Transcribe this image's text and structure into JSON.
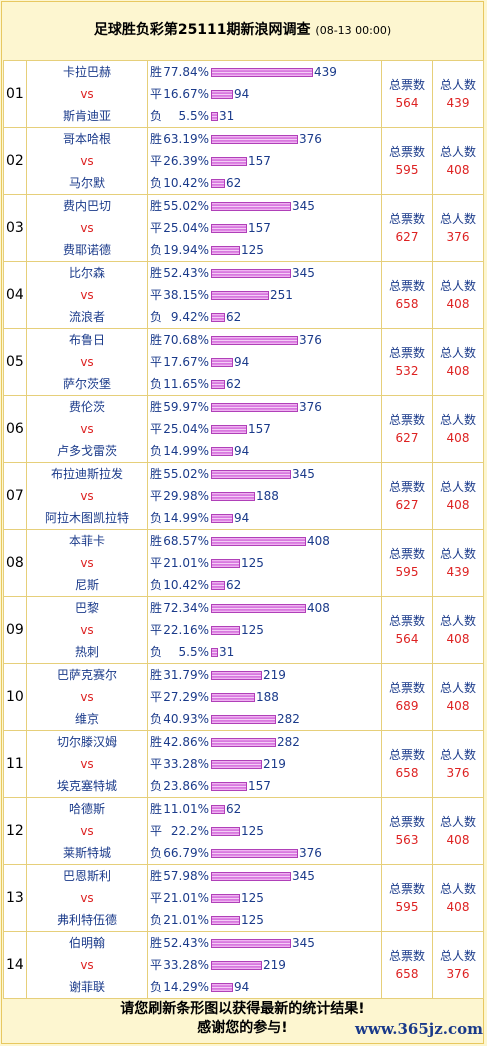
{
  "title": "足球胜负彩第25111期新浪网调查",
  "date": "(08-13 00:00)",
  "labels": {
    "win": "胜",
    "draw": "平",
    "loss": "负",
    "vs": "vs",
    "total_votes": "总票数",
    "total_people": "总人数"
  },
  "matches": [
    {
      "no": "01",
      "home": "卡拉巴赫",
      "away": "斯肯迪亚",
      "win": {
        "pct": "77.84%",
        "count": 439
      },
      "draw": {
        "pct": "16.67%",
        "count": 94
      },
      "loss": {
        "pct": "5.5%",
        "count": 31
      },
      "votes": "564",
      "people": "439"
    },
    {
      "no": "02",
      "home": "哥本哈根",
      "away": "马尔默",
      "win": {
        "pct": "63.19%",
        "count": 376
      },
      "draw": {
        "pct": "26.39%",
        "count": 157
      },
      "loss": {
        "pct": "10.42%",
        "count": 62
      },
      "votes": "595",
      "people": "408"
    },
    {
      "no": "03",
      "home": "费内巴切",
      "away": "费耶诺德",
      "win": {
        "pct": "55.02%",
        "count": 345
      },
      "draw": {
        "pct": "25.04%",
        "count": 157
      },
      "loss": {
        "pct": "19.94%",
        "count": 125
      },
      "votes": "627",
      "people": "376"
    },
    {
      "no": "04",
      "home": "比尔森",
      "away": "流浪者",
      "win": {
        "pct": "52.43%",
        "count": 345
      },
      "draw": {
        "pct": "38.15%",
        "count": 251
      },
      "loss": {
        "pct": "9.42%",
        "count": 62
      },
      "votes": "658",
      "people": "408"
    },
    {
      "no": "05",
      "home": "布鲁日",
      "away": "萨尔茨堡",
      "win": {
        "pct": "70.68%",
        "count": 376
      },
      "draw": {
        "pct": "17.67%",
        "count": 94
      },
      "loss": {
        "pct": "11.65%",
        "count": 62
      },
      "votes": "532",
      "people": "408"
    },
    {
      "no": "06",
      "home": "费伦茨",
      "away": "卢多戈雷茨",
      "win": {
        "pct": "59.97%",
        "count": 376
      },
      "draw": {
        "pct": "25.04%",
        "count": 157
      },
      "loss": {
        "pct": "14.99%",
        "count": 94
      },
      "votes": "627",
      "people": "408"
    },
    {
      "no": "07",
      "home": "布拉迪斯拉发",
      "away": "阿拉木图凯拉特",
      "win": {
        "pct": "55.02%",
        "count": 345
      },
      "draw": {
        "pct": "29.98%",
        "count": 188
      },
      "loss": {
        "pct": "14.99%",
        "count": 94
      },
      "votes": "627",
      "people": "408"
    },
    {
      "no": "08",
      "home": "本菲卡",
      "away": "尼斯",
      "win": {
        "pct": "68.57%",
        "count": 408
      },
      "draw": {
        "pct": "21.01%",
        "count": 125
      },
      "loss": {
        "pct": "10.42%",
        "count": 62
      },
      "votes": "595",
      "people": "439"
    },
    {
      "no": "09",
      "home": "巴黎",
      "away": "热刺",
      "win": {
        "pct": "72.34%",
        "count": 408
      },
      "draw": {
        "pct": "22.16%",
        "count": 125
      },
      "loss": {
        "pct": "5.5%",
        "count": 31
      },
      "votes": "564",
      "people": "408"
    },
    {
      "no": "10",
      "home": "巴萨克赛尔",
      "away": "维京",
      "win": {
        "pct": "31.79%",
        "count": 219
      },
      "draw": {
        "pct": "27.29%",
        "count": 188
      },
      "loss": {
        "pct": "40.93%",
        "count": 282
      },
      "votes": "689",
      "people": "408"
    },
    {
      "no": "11",
      "home": "切尔滕汉姆",
      "away": "埃克塞特城",
      "win": {
        "pct": "42.86%",
        "count": 282
      },
      "draw": {
        "pct": "33.28%",
        "count": 219
      },
      "loss": {
        "pct": "23.86%",
        "count": 157
      },
      "votes": "658",
      "people": "376"
    },
    {
      "no": "12",
      "home": "哈德斯",
      "away": "莱斯特城",
      "win": {
        "pct": "11.01%",
        "count": 62
      },
      "draw": {
        "pct": "22.2%",
        "count": 125
      },
      "loss": {
        "pct": "66.79%",
        "count": 376
      },
      "votes": "563",
      "people": "408"
    },
    {
      "no": "13",
      "home": "巴恩斯利",
      "away": "弗利特伍德",
      "win": {
        "pct": "57.98%",
        "count": 345
      },
      "draw": {
        "pct": "21.01%",
        "count": 125
      },
      "loss": {
        "pct": "21.01%",
        "count": 125
      },
      "votes": "595",
      "people": "408"
    },
    {
      "no": "14",
      "home": "伯明翰",
      "away": "谢菲联",
      "win": {
        "pct": "52.43%",
        "count": 345
      },
      "draw": {
        "pct": "33.28%",
        "count": 219
      },
      "loss": {
        "pct": "14.29%",
        "count": 94
      },
      "votes": "658",
      "people": "376"
    }
  ],
  "footer": {
    "line1": "请您刷新条形图以获得最新的统计结果!",
    "line2": "感谢您的参与!"
  },
  "watermark": "www.365jz.com"
}
